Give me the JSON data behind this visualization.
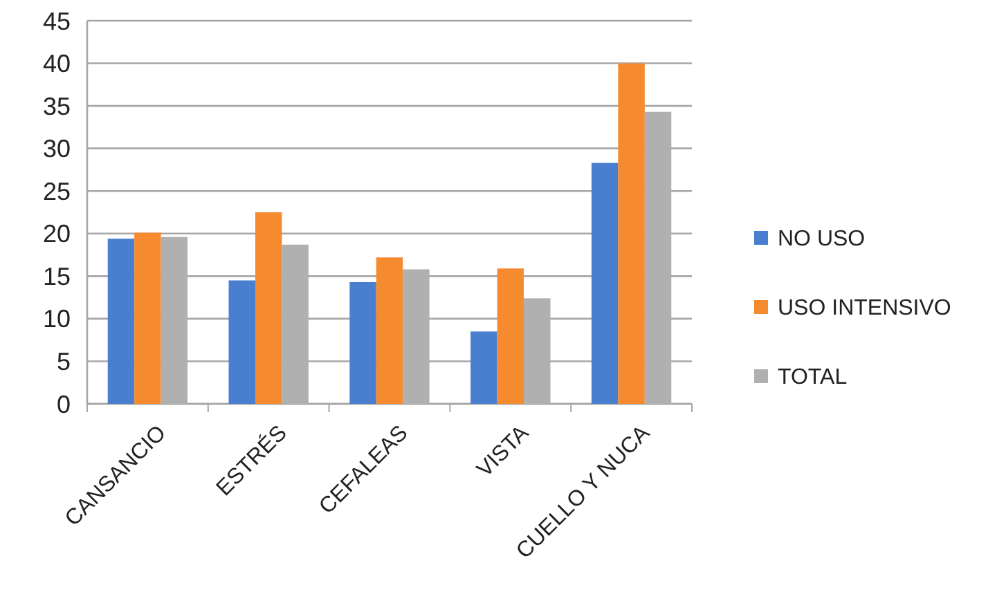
{
  "chart_data": {
    "type": "bar",
    "categories": [
      "CANSANCIO",
      "ESTRÉS",
      "CEFALEAS",
      "VISTA",
      "CUELLO Y NUCA"
    ],
    "series": [
      {
        "name": "NO USO",
        "color": "#4a7fd0",
        "values": [
          19.4,
          14.5,
          14.3,
          8.5,
          28.3
        ]
      },
      {
        "name": "USO INTENSIVO",
        "color": "#f58a2e",
        "values": [
          20.1,
          22.5,
          17.2,
          15.9,
          40
        ]
      },
      {
        "name": "TOTAL",
        "color": "#b0b0b0",
        "values": [
          19.6,
          18.7,
          15.8,
          12.4,
          34.3
        ]
      }
    ],
    "ylim": [
      0,
      45
    ],
    "yticks": [
      0,
      5,
      10,
      15,
      20,
      25,
      30,
      35,
      40,
      45
    ],
    "grid": "y",
    "legend": "right"
  }
}
